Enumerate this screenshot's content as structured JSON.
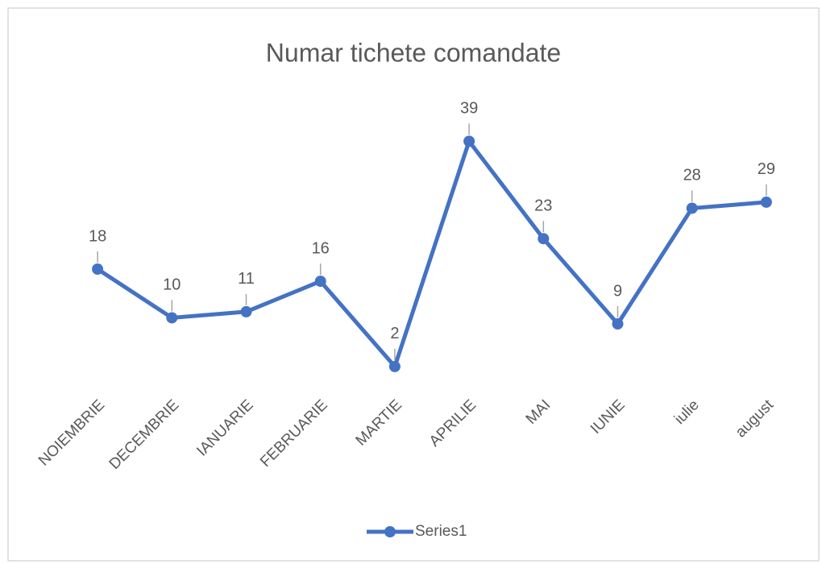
{
  "chart_data": {
    "type": "line",
    "title": "Numar tichete comandate",
    "categories": [
      "NOIEMBRIE",
      "DECEMBRIE",
      "IANUARIE",
      "FEBRUARIE",
      "MARTIE",
      "APRILIE",
      "MAI",
      "IUNIE",
      "iulie",
      "august"
    ],
    "series": [
      {
        "name": "Series1",
        "color": "#4472c4",
        "values": [
          18,
          10,
          11,
          16,
          2,
          39,
          23,
          9,
          28,
          29
        ]
      }
    ],
    "ylim": [
      0,
      45
    ],
    "grid": false,
    "legend": "bottom",
    "data_labels": true
  }
}
